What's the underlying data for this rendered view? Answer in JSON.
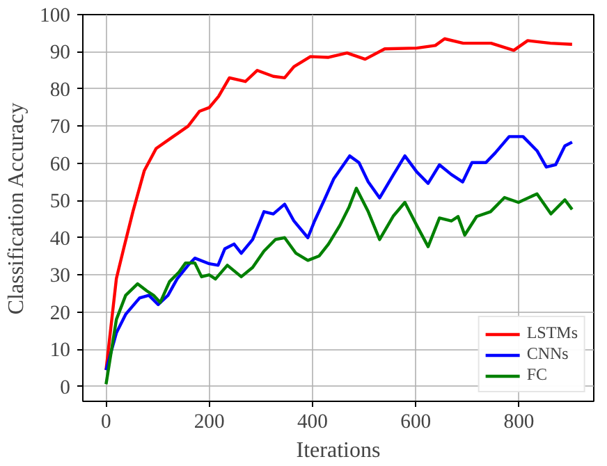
{
  "chart_data": {
    "type": "line",
    "xlabel": "Iterations",
    "ylabel": "Classification Accuracy",
    "xlim": [
      -45,
      945
    ],
    "ylim": [
      -4,
      100
    ],
    "xticks": [
      0,
      200,
      400,
      600,
      800
    ],
    "yticks": [
      0,
      10,
      20,
      30,
      40,
      50,
      60,
      70,
      80,
      90,
      100
    ],
    "grid": true,
    "legend": "bottom right",
    "line_style": "solid",
    "marker": "none",
    "series": [
      {
        "name": "LSTMs",
        "color": "#ff0000",
        "x": [
          0,
          20,
          34,
          52,
          74,
          97,
          128,
          159,
          181,
          200,
          218,
          239,
          270,
          293,
          324,
          346,
          364,
          396,
          431,
          467,
          502,
          540,
          602,
          638,
          656,
          692,
          746,
          790,
          817,
          861,
          903
        ],
        "values": [
          4.4,
          29,
          37,
          47,
          58,
          64,
          67,
          70,
          74,
          75,
          78,
          83,
          82,
          85,
          83.4,
          83,
          86,
          88.7,
          88.5,
          89.7,
          88,
          90.8,
          91,
          91.7,
          93.5,
          92.3,
          92.3,
          90.4,
          93,
          92.3,
          92
        ]
      },
      {
        "name": "CNNs",
        "color": "#0000ff",
        "x": [
          0,
          20,
          38,
          65,
          83,
          101,
          120,
          138,
          159,
          172,
          200,
          217,
          230,
          248,
          262,
          284,
          306,
          324,
          346,
          364,
          391,
          404,
          423,
          441,
          472,
          490,
          508,
          530,
          557,
          579,
          602,
          624,
          646,
          669,
          691,
          709,
          736,
          754,
          781,
          808,
          835,
          853,
          871,
          889,
          903
        ],
        "values": [
          4.4,
          14.4,
          19.4,
          23.8,
          24.5,
          22,
          24.5,
          29,
          32.6,
          34.5,
          33,
          32.6,
          37,
          38.3,
          35.8,
          39.5,
          47,
          46.4,
          49,
          44.5,
          40,
          44.5,
          50.2,
          55.8,
          62,
          60.2,
          55,
          50.7,
          57,
          62,
          57.7,
          54.6,
          59.6,
          57,
          55,
          60.2,
          60.2,
          62.8,
          67.2,
          67.2,
          63.4,
          59,
          59.6,
          64.7,
          65.7
        ]
      },
      {
        "name": "FC",
        "color": "#008000",
        "x": [
          0,
          20,
          38,
          61,
          79,
          92,
          105,
          123,
          141,
          154,
          172,
          185,
          200,
          212,
          235,
          262,
          284,
          306,
          328,
          346,
          368,
          391,
          413,
          431,
          453,
          471,
          485,
          508,
          530,
          557,
          579,
          602,
          624,
          646,
          669,
          682,
          695,
          718,
          745,
          772,
          799,
          835,
          862,
          889,
          903
        ],
        "values": [
          0.6,
          18,
          24.5,
          27.6,
          25.7,
          24.5,
          22.6,
          28.2,
          30.7,
          33.2,
          33.2,
          29.5,
          30,
          28.9,
          32.6,
          29.5,
          32,
          36.4,
          39.5,
          40,
          35.8,
          33.9,
          35.1,
          38.3,
          43.3,
          48.3,
          53.3,
          47,
          39.5,
          45.9,
          49.5,
          43.3,
          37.6,
          45.3,
          44.5,
          45.7,
          40.7,
          45.7,
          47,
          50.8,
          49.5,
          51.8,
          46.4,
          50.2,
          47.6
        ]
      }
    ]
  }
}
